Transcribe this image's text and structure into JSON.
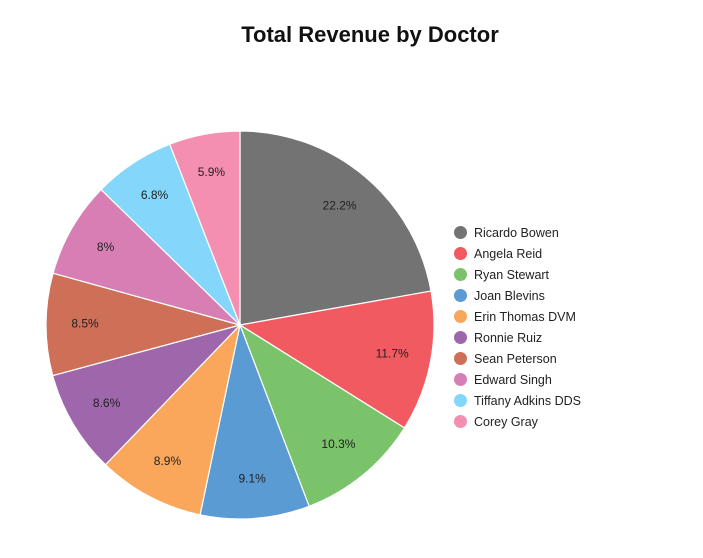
{
  "chart_data": {
    "type": "pie",
    "title": "Total Revenue by Doctor",
    "legend_position": "right",
    "slices": [
      {
        "name": "Ricardo Bowen",
        "value": 22.2,
        "label": "22.2%",
        "color": "#737373"
      },
      {
        "name": "Angela Reid",
        "value": 11.7,
        "label": "11.7%",
        "color": "#f15a60"
      },
      {
        "name": "Ryan Stewart",
        "value": 10.3,
        "label": "10.3%",
        "color": "#7ac36a"
      },
      {
        "name": "Joan Blevins",
        "value": 9.1,
        "label": "9.1%",
        "color": "#5a9bd4"
      },
      {
        "name": "Erin Thomas DVM",
        "value": 8.9,
        "label": "8.9%",
        "color": "#faa75b"
      },
      {
        "name": "Ronnie Ruiz",
        "value": 8.6,
        "label": "8.6%",
        "color": "#9e67ab"
      },
      {
        "name": "Sean Peterson",
        "value": 8.5,
        "label": "8.5%",
        "color": "#ce7058"
      },
      {
        "name": "Edward Singh",
        "value": 8,
        "label": "8%",
        "color": "#d77fb4"
      },
      {
        "name": "Tiffany Adkins DDS",
        "value": 6.8,
        "label": "6.8%",
        "color": "#84d6fa"
      },
      {
        "name": "Corey Gray",
        "value": 5.9,
        "label": "5.9%",
        "color": "#f48fb1"
      }
    ]
  }
}
